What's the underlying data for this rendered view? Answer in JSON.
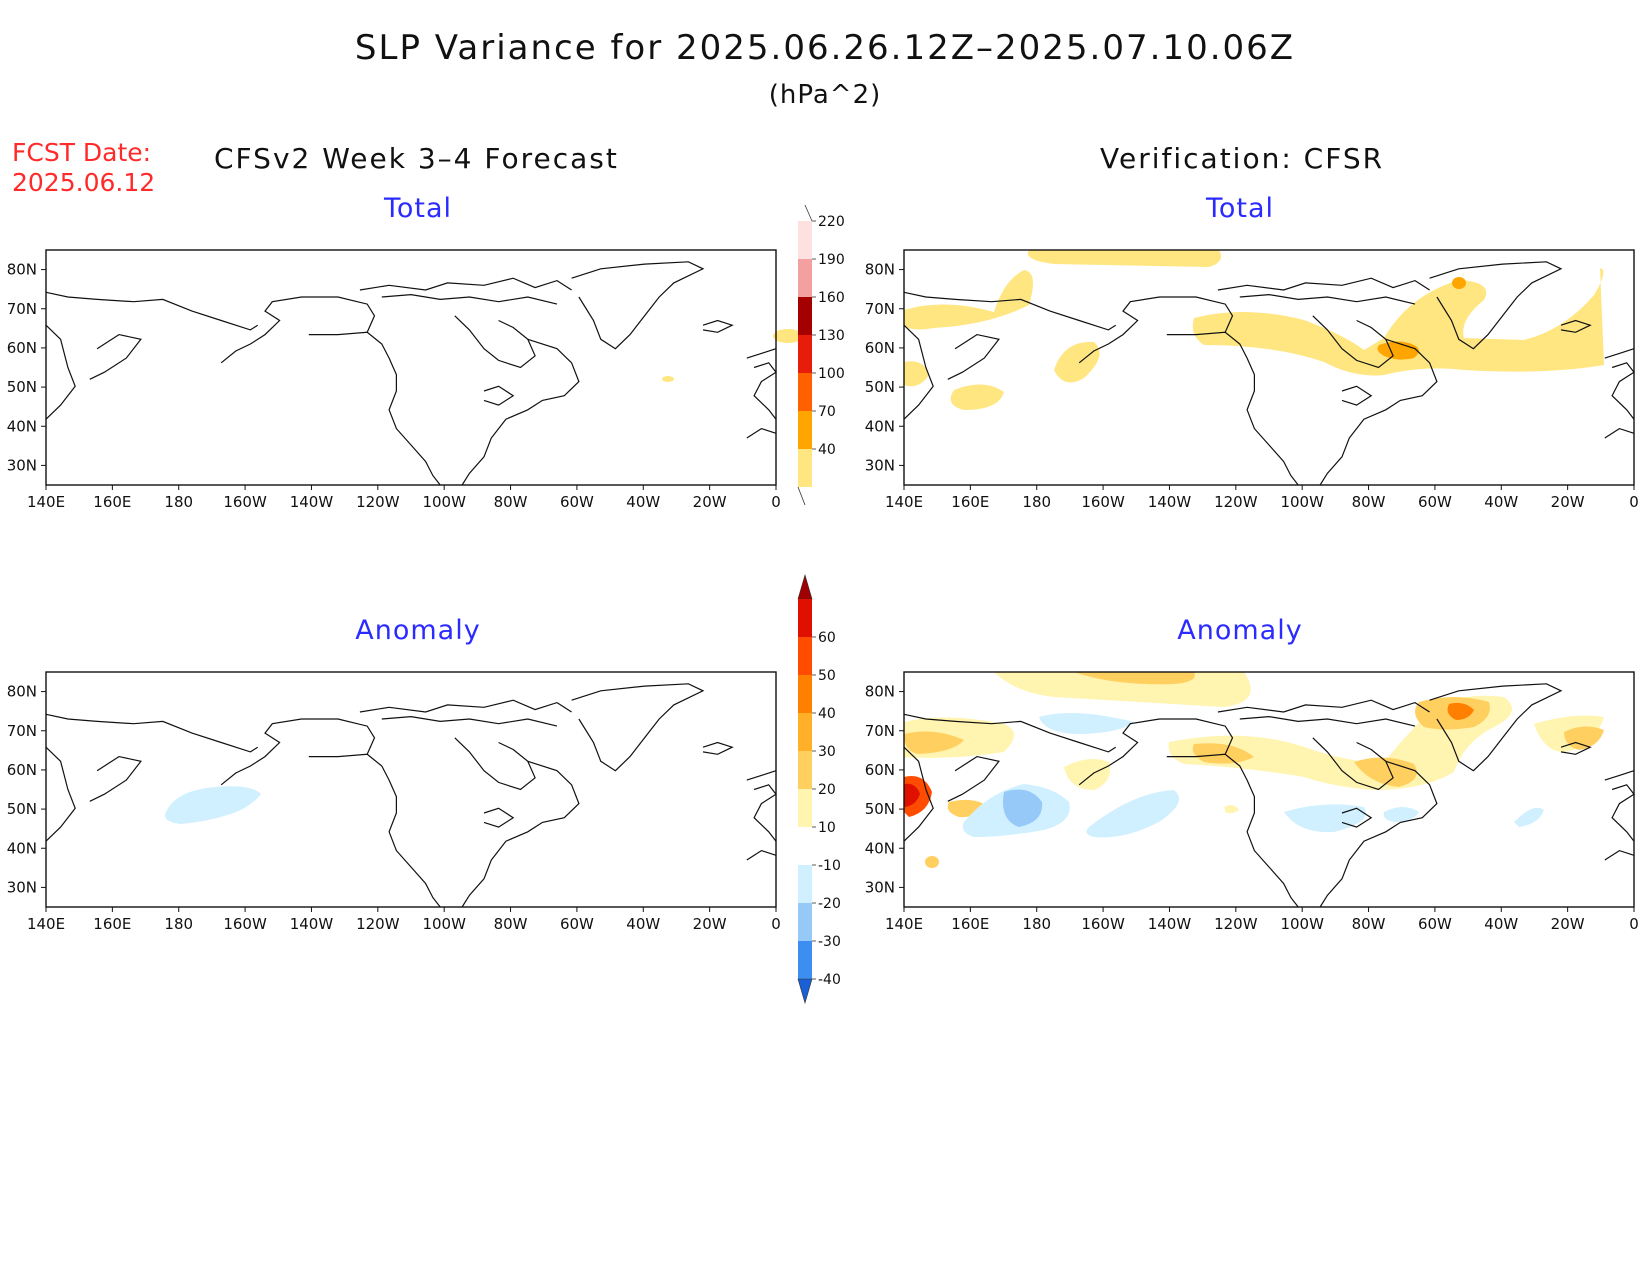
{
  "header": {
    "title": "SLP Variance for 2025.06.26.12Z–2025.07.10.06Z",
    "units": "(hPa^2)",
    "fcst_label": "FCST Date:",
    "fcst_date": "2025.06.12",
    "left_column_title": "CFSv2 Week 3–4 Forecast",
    "right_column_title": "Verification: CFSR"
  },
  "panels": [
    {
      "id": "fcst-total",
      "title": "Total"
    },
    {
      "id": "verif-total",
      "title": "Total"
    },
    {
      "id": "fcst-anomaly",
      "title": "Anomaly"
    },
    {
      "id": "verif-anomaly",
      "title": "Anomaly"
    }
  ],
  "axes": {
    "lon_labels": [
      "140E",
      "160E",
      "180",
      "160W",
      "140W",
      "120W",
      "100W",
      "80W",
      "60W",
      "40W",
      "20W",
      "0"
    ],
    "lat_labels": [
      "80N",
      "70N",
      "60N",
      "50N",
      "40N",
      "30N"
    ],
    "lon_range": [
      "140E",
      "0"
    ],
    "lat_range_deg": [
      25,
      85
    ]
  },
  "colorbars": {
    "total": {
      "levels": [
        "40",
        "70",
        "100",
        "130",
        "160",
        "190",
        "220"
      ],
      "colors": [
        "#ffe680",
        "#ffa500",
        "#ff6000",
        "#e81c0a",
        "#a50000",
        "#f4a0a0",
        "#fde0e0"
      ]
    },
    "anomaly": {
      "levels": [
        "-40",
        "-30",
        "-20",
        "-10",
        "10",
        "20",
        "30",
        "40",
        "50",
        "60"
      ],
      "colors": [
        "#1a5fd6",
        "#3c8ff0",
        "#96c8f8",
        "#d0f0ff",
        "#ffffff",
        "#fff4b0",
        "#ffd060",
        "#ffb028",
        "#ff8000",
        "#ff4c00",
        "#e01000",
        "#a00000"
      ]
    }
  },
  "chart_data": {
    "type": "heatmap",
    "title": "SLP Variance for 2025.06.26.12Z–2025.07.10.06Z",
    "units": "hPa^2",
    "x_range": [
      "140E",
      "0"
    ],
    "y_range": [
      "25N",
      "85N"
    ],
    "panels": [
      {
        "name": "CFSv2 Week 3–4 Forecast – Total",
        "regions": [
          {
            "lon": "4W",
            "lat": 62,
            "value_range": "40-70"
          }
        ]
      },
      {
        "name": "Verification: CFSR – Total",
        "regions": [
          {
            "area": "Arctic north of 85N near 160W-140W",
            "value_range": "40-70"
          },
          {
            "area": "Bering Sea / E Siberia 55-75N",
            "value_range": "40-70"
          },
          {
            "area": "Canada to N Atlantic band 55-65N",
            "value_range": "40-70"
          },
          {
            "area": "Labrador Sea near 60W 57N",
            "value_range": "70-100"
          },
          {
            "area": "Greenland east coast near 40W 73N",
            "value_range": "70-100"
          }
        ]
      },
      {
        "name": "CFSv2 Week 3–4 Forecast – Anomaly",
        "regions": [
          {
            "area": "N Pacific 160E-170W 40-47N",
            "value_range": "-10 to -20"
          }
        ]
      },
      {
        "name": "Verification: CFSR – Anomaly",
        "regions": [
          {
            "area": "Kamchatka 140E 52N",
            "value_range": "40-60"
          },
          {
            "area": "Greenland near 40W 73N",
            "value_range": "30-40"
          },
          {
            "area": "Canada/Hudson Bay band 55-65N",
            "value_range": "20-30"
          },
          {
            "area": "N Pacific near 180 45N",
            "value_range": "-20 to -30"
          },
          {
            "area": "Central Pacific/US east coast 40-50N",
            "value_range": "-10 to -20"
          }
        ]
      }
    ]
  }
}
